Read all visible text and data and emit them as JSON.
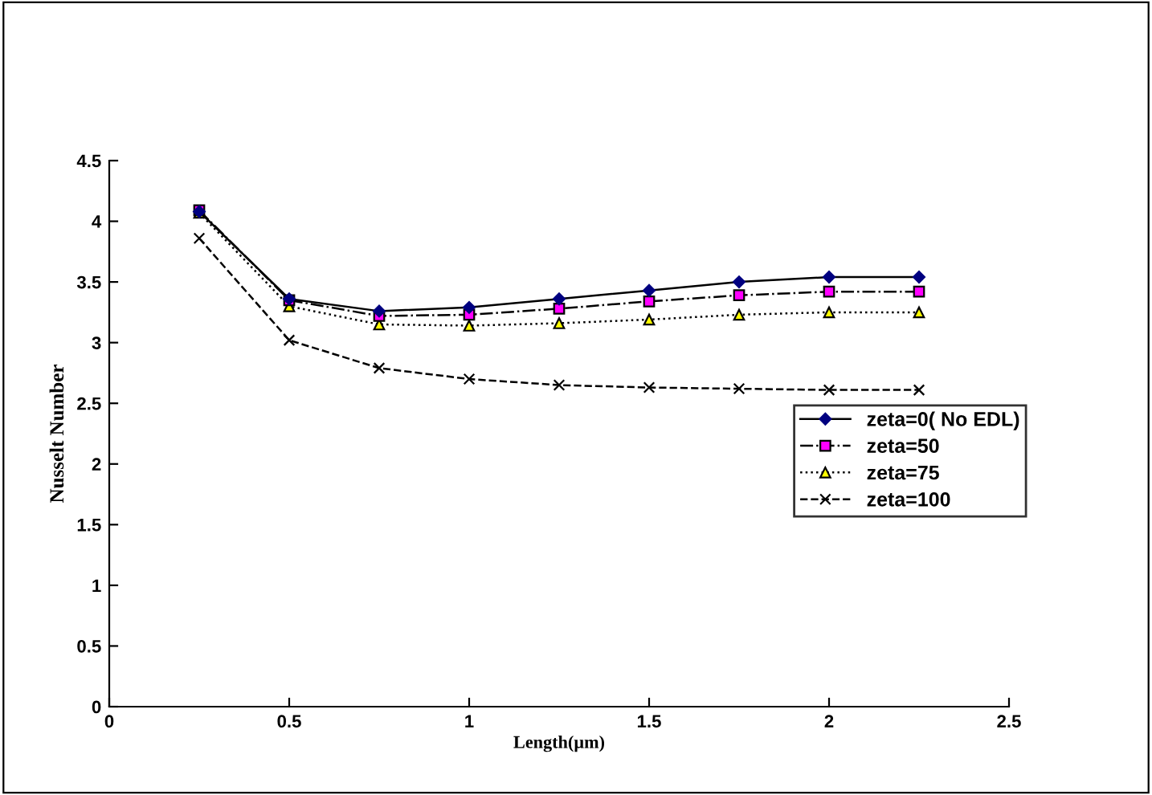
{
  "chart_data": {
    "type": "line",
    "xlabel": "Length(µm)",
    "ylabel": "Nusselt Number",
    "x": [
      0.25,
      0.5,
      0.75,
      1.0,
      1.25,
      1.5,
      1.75,
      2.0,
      2.25
    ],
    "series": [
      {
        "name": "zeta=0( No EDL)",
        "color": "#000080",
        "marker": "diamond",
        "line_style": "solid",
        "values": [
          4.08,
          3.36,
          3.26,
          3.29,
          3.36,
          3.43,
          3.5,
          3.54,
          3.54
        ]
      },
      {
        "name": "zeta=50",
        "color": "#ff00ff",
        "marker": "square",
        "line_style": "dashdot",
        "values": [
          4.09,
          3.35,
          3.22,
          3.23,
          3.28,
          3.34,
          3.39,
          3.42,
          3.42
        ]
      },
      {
        "name": "zeta=75",
        "color": "#ffff00",
        "marker": "triangle",
        "line_style": "dotted",
        "values": [
          4.07,
          3.3,
          3.15,
          3.14,
          3.16,
          3.19,
          3.23,
          3.25,
          3.25
        ]
      },
      {
        "name": "zeta=100",
        "color": "#000000",
        "marker": "cross",
        "line_style": "dashed",
        "values": [
          3.86,
          3.02,
          2.79,
          2.7,
          2.65,
          2.63,
          2.62,
          2.61,
          2.61
        ]
      }
    ],
    "xlim": [
      0,
      2.5
    ],
    "xticks": [
      0,
      0.5,
      1,
      1.5,
      2,
      2.5
    ],
    "ylim": [
      0,
      4.5
    ],
    "yticks": [
      0,
      0.5,
      1,
      1.5,
      2,
      2.5,
      3,
      3.5,
      4,
      4.5
    ],
    "grid": false,
    "legend": "right"
  }
}
